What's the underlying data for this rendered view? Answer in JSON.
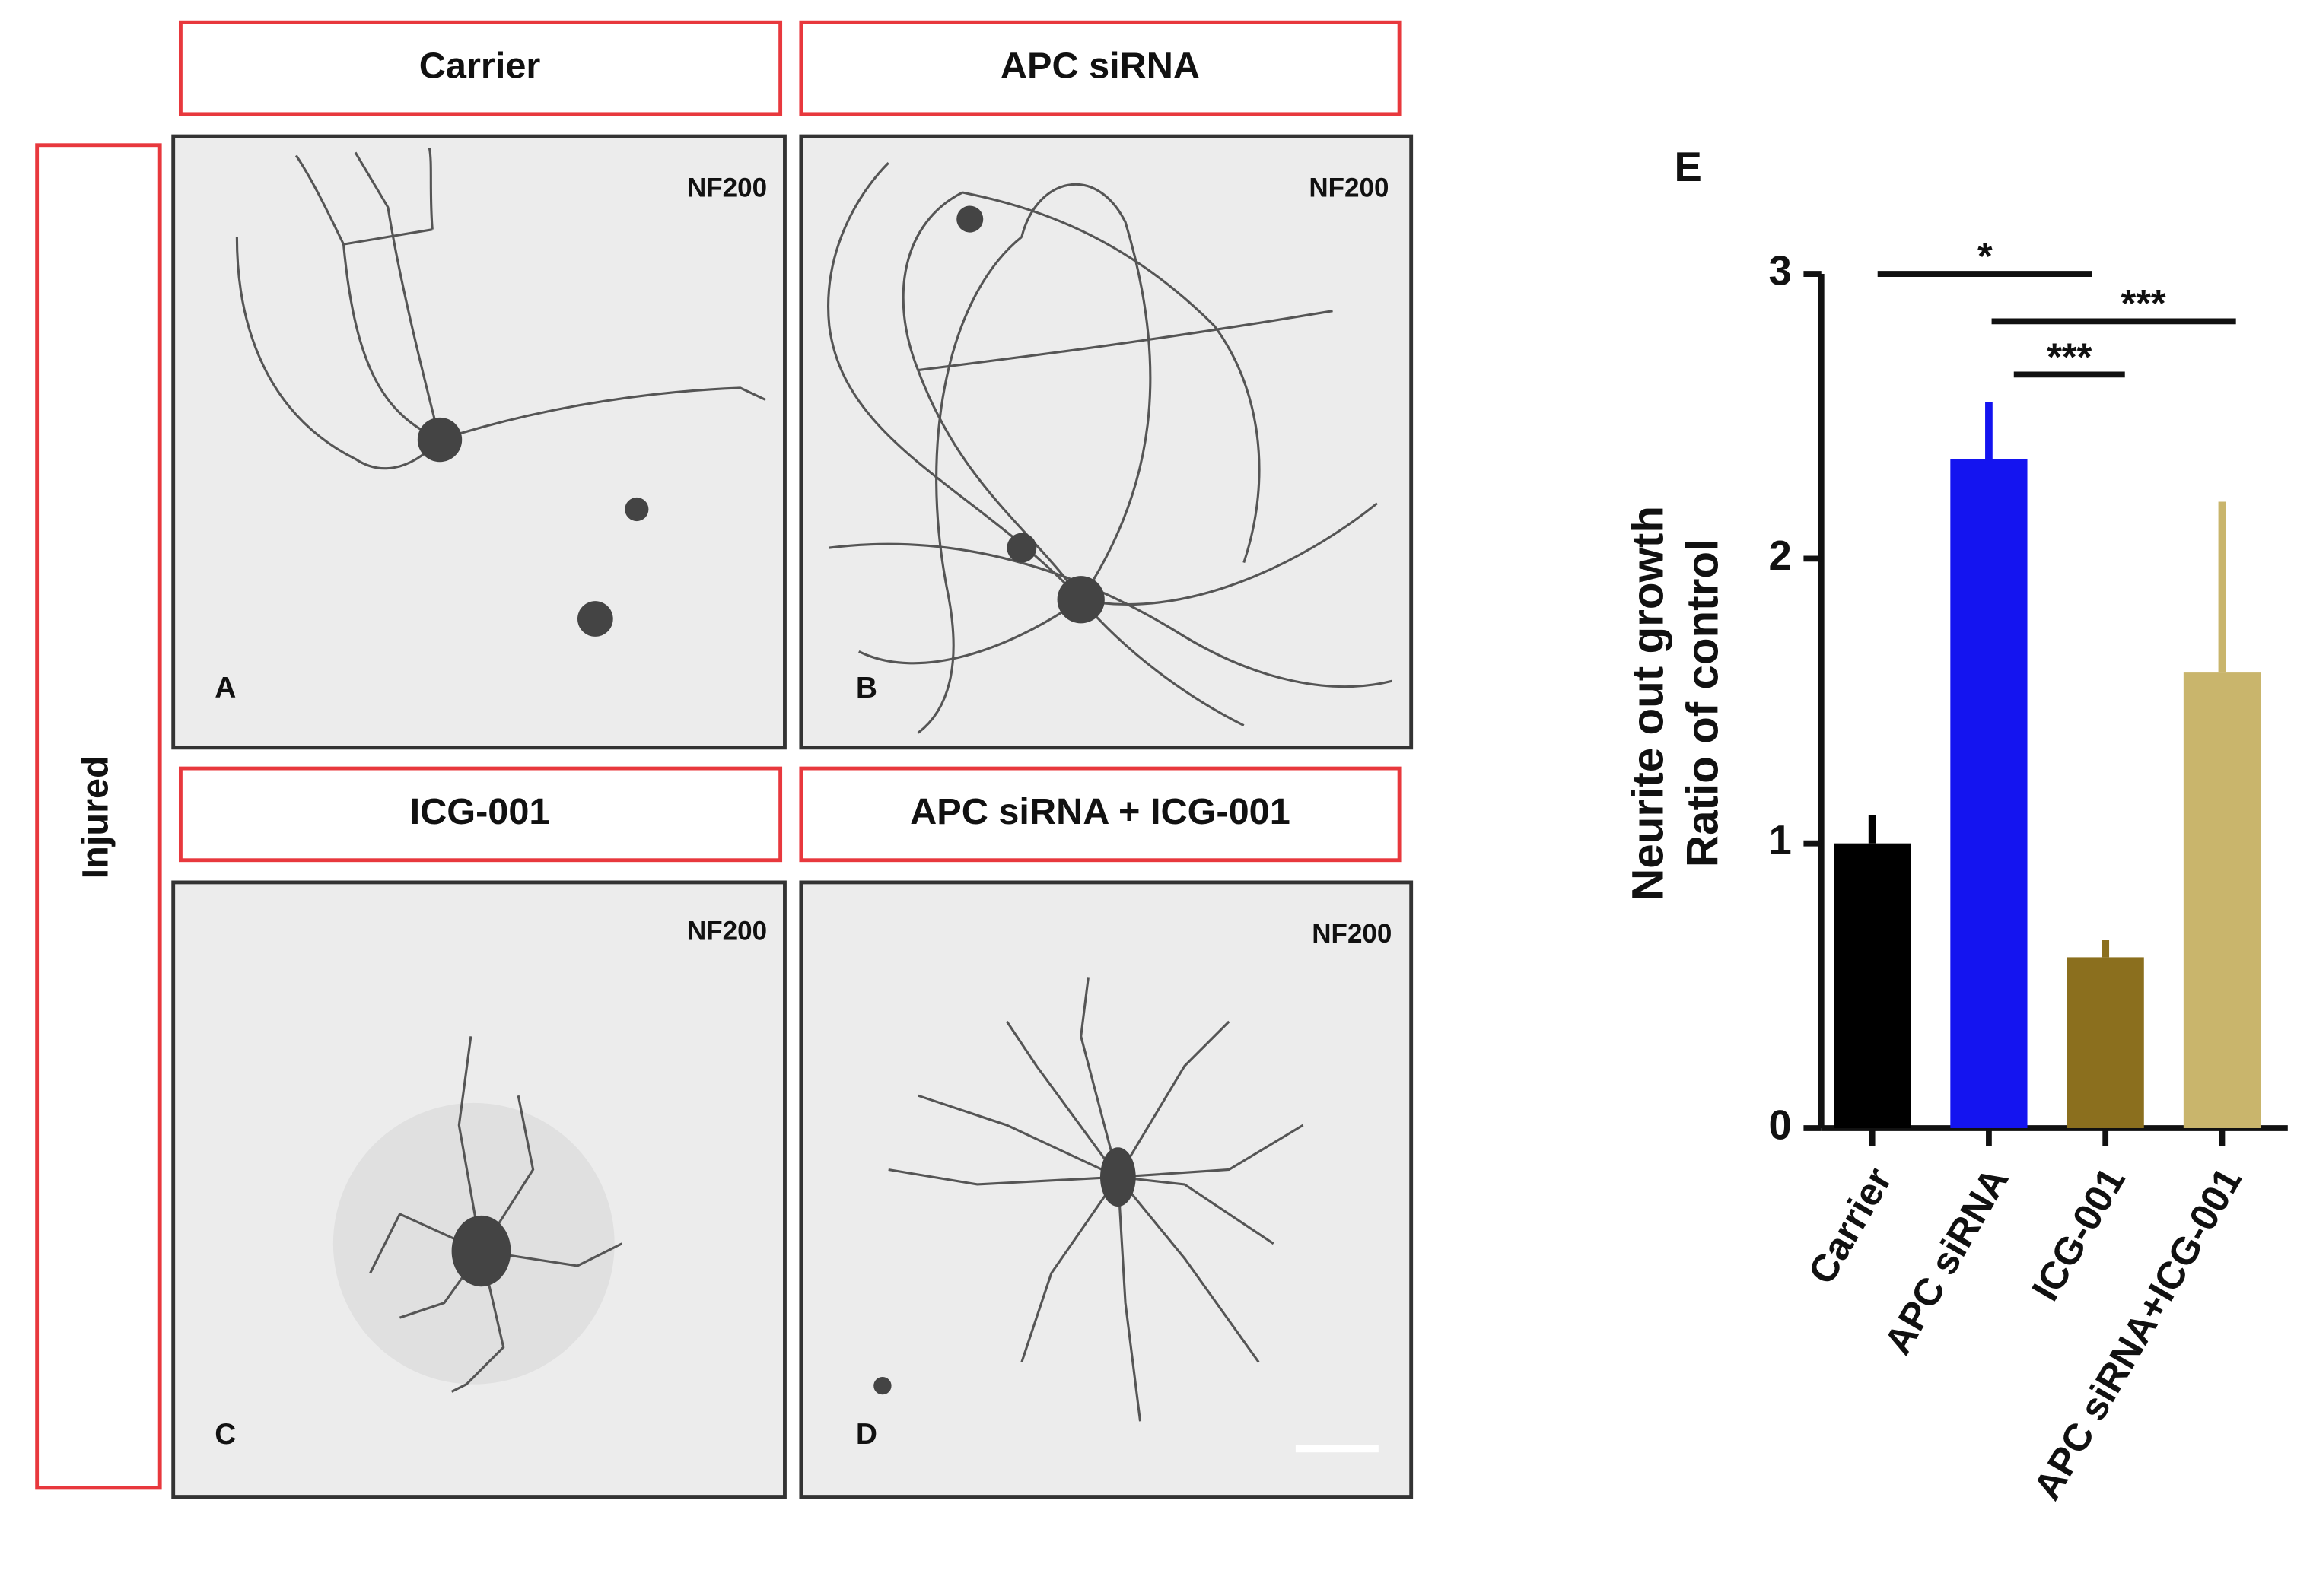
{
  "panels": {
    "column_headers": [
      "Carrier",
      "APC siRNA",
      "ICG-001",
      "APC siRNA  + ICG-001"
    ],
    "row_label": "Injured",
    "images": [
      {
        "letter": "A",
        "stain": "NF200"
      },
      {
        "letter": "B",
        "stain": "NF200"
      },
      {
        "letter": "C",
        "stain": "NF200"
      },
      {
        "letter": "D",
        "stain": "NF200"
      }
    ]
  },
  "chart_data": {
    "type": "bar",
    "panel_label": "E",
    "y_label": [
      "Neurite out growth",
      "Ratio of control"
    ],
    "categories": [
      "Carrier",
      "APC siRNA",
      "ICG-001",
      "APC siRNA+ICG-001"
    ],
    "values": [
      1.0,
      2.35,
      0.6,
      1.6
    ],
    "errors": [
      0.1,
      0.2,
      0.06,
      0.6
    ],
    "colors": [
      "#000000",
      "#1414f0",
      "#8b6f1e",
      "#c9b56c"
    ],
    "ylim": [
      0,
      3
    ],
    "yticks": [
      0,
      1,
      2,
      3
    ],
    "annotations": [
      "*",
      "***",
      "***"
    ]
  }
}
